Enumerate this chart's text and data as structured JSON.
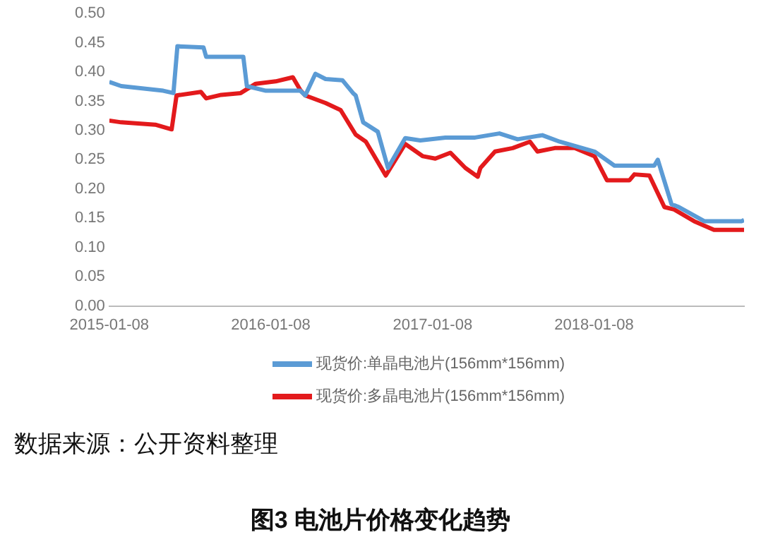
{
  "chart_data": {
    "type": "line",
    "title": "图3 电池片价格变化趋势",
    "annotations": [
      "数据来源：公开资料整理"
    ],
    "xlim": [
      "2015-01-08",
      "2018-12-13"
    ],
    "xticks": [
      "2015-01-08",
      "2016-01-08",
      "2017-01-08",
      "2018-01-08"
    ],
    "ylim": [
      0,
      0.5
    ],
    "yticks": [
      {
        "value": 0,
        "label": "0.00"
      },
      {
        "value": 0.05,
        "label": "0.05"
      },
      {
        "value": 0.1,
        "label": "0.10"
      },
      {
        "value": 0.15,
        "label": "0.15"
      },
      {
        "value": 0.2,
        "label": "0.20"
      },
      {
        "value": 0.25,
        "label": "0.25"
      },
      {
        "value": 0.3,
        "label": "0.30"
      },
      {
        "value": 0.35,
        "label": "0.35"
      },
      {
        "value": 0.4,
        "label": "0.40"
      },
      {
        "value": 0.45,
        "label": "0.45"
      },
      {
        "value": 0.5,
        "label": "0.50"
      }
    ],
    "grid": false,
    "legend": "bottom",
    "marker": "none",
    "line_style": "solid",
    "series": [
      {
        "name": "现货价:单晶电池片(156mm*156mm)",
        "color": "#5b9bd5",
        "x": [
          "2015-01-08",
          "2015-02-04",
          "2015-05-10",
          "2015-06-02",
          "2015-06-11",
          "2015-08-09",
          "2015-08-15",
          "2015-11-07",
          "2015-11-15",
          "2015-12-28",
          "2016-03-15",
          "2016-03-26",
          "2016-04-18",
          "2016-05-11",
          "2016-06-18",
          "2016-07-12",
          "2016-07-18",
          "2016-08-04",
          "2016-09-06",
          "2016-09-29",
          "2016-11-07",
          "2016-12-11",
          "2017-02-06",
          "2017-04-14",
          "2017-06-08",
          "2017-07-19",
          "2017-09-13",
          "2017-10-22",
          "2018-01-09",
          "2018-02-23",
          "2018-05-24",
          "2018-06-01",
          "2018-07-02",
          "2018-07-19",
          "2018-09-14",
          "2018-12-08",
          "2018-12-13"
        ],
        "values": [
          0.383,
          0.376,
          0.368,
          0.364,
          0.444,
          0.442,
          0.426,
          0.426,
          0.376,
          0.368,
          0.368,
          0.36,
          0.397,
          0.388,
          0.386,
          0.364,
          0.36,
          0.314,
          0.298,
          0.236,
          0.287,
          0.283,
          0.288,
          0.288,
          0.295,
          0.285,
          0.292,
          0.281,
          0.264,
          0.24,
          0.24,
          0.25,
          0.174,
          0.169,
          0.145,
          0.145,
          0.147
        ]
      },
      {
        "name": "现货价:多晶电池片(156mm*156mm)",
        "color": "#e31a1c",
        "x": [
          "2015-01-08",
          "2015-02-04",
          "2015-04-22",
          "2015-05-29",
          "2015-06-09",
          "2015-08-03",
          "2015-08-15",
          "2015-09-18",
          "2015-11-01",
          "2015-12-05",
          "2016-01-19",
          "2016-02-27",
          "2016-03-15",
          "2016-03-26",
          "2016-05-11",
          "2016-06-14",
          "2016-07-18",
          "2016-08-10",
          "2016-09-24",
          "2016-11-07",
          "2016-12-17",
          "2017-01-14",
          "2017-02-17",
          "2017-03-23",
          "2017-04-20",
          "2017-04-26",
          "2017-05-29",
          "2017-07-08",
          "2017-08-16",
          "2017-09-02",
          "2017-10-11",
          "2017-11-25",
          "2018-01-09",
          "2018-02-06",
          "2018-03-29",
          "2018-04-09",
          "2018-05-13",
          "2018-06-16",
          "2018-07-08",
          "2018-08-22",
          "2018-10-06",
          "2018-12-13"
        ],
        "values": [
          0.317,
          0.314,
          0.31,
          0.302,
          0.36,
          0.366,
          0.355,
          0.361,
          0.364,
          0.38,
          0.384,
          0.391,
          0.369,
          0.36,
          0.347,
          0.335,
          0.293,
          0.281,
          0.223,
          0.277,
          0.256,
          0.252,
          0.262,
          0.236,
          0.221,
          0.236,
          0.264,
          0.27,
          0.281,
          0.264,
          0.27,
          0.27,
          0.256,
          0.215,
          0.215,
          0.225,
          0.223,
          0.169,
          0.165,
          0.145,
          0.13,
          0.13
        ]
      }
    ]
  }
}
